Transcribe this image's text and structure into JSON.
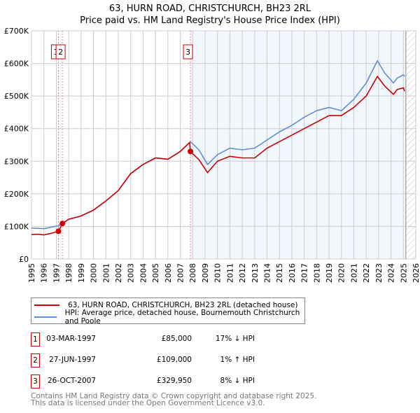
{
  "chart_data": {
    "type": "line",
    "title": "63, HURN ROAD, CHRISTCHURCH, BH23 2RL",
    "subtitle": "Price paid vs. HM Land Registry's House Price Index (HPI)",
    "xlim": [
      1995,
      2026
    ],
    "ylim": [
      0,
      700000
    ],
    "x_ticks": [
      "1995",
      "1996",
      "1997",
      "1998",
      "1999",
      "2000",
      "2001",
      "2002",
      "2003",
      "2004",
      "2005",
      "2006",
      "2007",
      "2008",
      "2009",
      "2010",
      "2011",
      "2012",
      "2013",
      "2014",
      "2015",
      "2016",
      "2017",
      "2018",
      "2019",
      "2020",
      "2021",
      "2022",
      "2023",
      "2024",
      "2025",
      "2026"
    ],
    "y_ticks": [
      {
        "v": 0,
        "label": "£0"
      },
      {
        "v": 100000,
        "label": "£100K"
      },
      {
        "v": 200000,
        "label": "£200K"
      },
      {
        "v": 300000,
        "label": "£300K"
      },
      {
        "v": 400000,
        "label": "£400K"
      },
      {
        "v": 500000,
        "label": "£500K"
      },
      {
        "v": 600000,
        "label": "£600K"
      },
      {
        "v": 700000,
        "label": "£700K"
      }
    ],
    "grid": true,
    "shaded_from": 2007.82,
    "hatched_from": 2025.2,
    "series": [
      {
        "name": "63, HURN ROAD, CHRISTCHURCH, BH23 2RL (detached house)",
        "color": "#cc0000",
        "x": [
          1995,
          1995.5,
          1996,
          1996.5,
          1997.17,
          1997.17,
          1997.49,
          1998,
          1999,
          2000,
          2001,
          2002,
          2003,
          2004,
          2005,
          2006,
          2007,
          2007.75,
          2007.82,
          2008.5,
          2009.2,
          2010,
          2011,
          2012,
          2013,
          2014,
          2015,
          2016,
          2017,
          2018,
          2019,
          2020,
          2021,
          2022,
          2022.9,
          2023.5,
          2024.2,
          2024.5,
          2025,
          2025.1
        ],
        "y": [
          75000,
          76000,
          74000,
          78000,
          85000,
          85000,
          109000,
          122000,
          132000,
          150000,
          178000,
          210000,
          262000,
          290000,
          310000,
          306000,
          330000,
          357000,
          329950,
          305000,
          265000,
          300000,
          315000,
          310000,
          310000,
          340000,
          360000,
          380000,
          400000,
          420000,
          440000,
          440000,
          465000,
          500000,
          560000,
          530000,
          505000,
          520000,
          525000,
          515000
        ]
      },
      {
        "name": "HPI: Average price, detached house, Bournemouth Christchurch and Poole",
        "color": "#5b8fd6",
        "x": [
          1995,
          1995.5,
          1996,
          1996.5,
          1997.17,
          1997.49,
          1998,
          1999,
          2000,
          2001,
          2002,
          2003,
          2004,
          2005,
          2006,
          2007,
          2007.82,
          2008.5,
          2009.2,
          2010,
          2011,
          2012,
          2013,
          2014,
          2015,
          2016,
          2017,
          2018,
          2019,
          2020,
          2021,
          2022,
          2022.9,
          2023.5,
          2024.2,
          2024.5,
          2025,
          2025.1
        ],
        "y": [
          95000,
          94000,
          93000,
          97000,
          102000,
          108000,
          122000,
          132000,
          150000,
          178000,
          210000,
          262000,
          290000,
          310000,
          306000,
          330000,
          360000,
          335000,
          290000,
          320000,
          340000,
          335000,
          340000,
          365000,
          390000,
          410000,
          435000,
          455000,
          465000,
          455000,
          490000,
          540000,
          608000,
          570000,
          540000,
          555000,
          565000,
          560000
        ]
      }
    ],
    "sales": [
      {
        "id": "1",
        "x": 1997.17,
        "y": 85000,
        "date": "03-MAR-1997",
        "price": "£85,000",
        "hpi": "17% ↓ HPI"
      },
      {
        "id": "2",
        "x": 1997.49,
        "y": 109000,
        "date": "27-JUN-1997",
        "price": "£109,000",
        "hpi": "1% ↑ HPI"
      },
      {
        "id": "3",
        "x": 2007.82,
        "y": 329950,
        "date": "26-OCT-2007",
        "price": "£329,950",
        "hpi": "8% ↓ HPI"
      }
    ]
  },
  "footer": {
    "line1": "Contains HM Land Registry data © Crown copyright and database right 2025.",
    "line2": "This data is licensed under the Open Government Licence v3.0."
  }
}
